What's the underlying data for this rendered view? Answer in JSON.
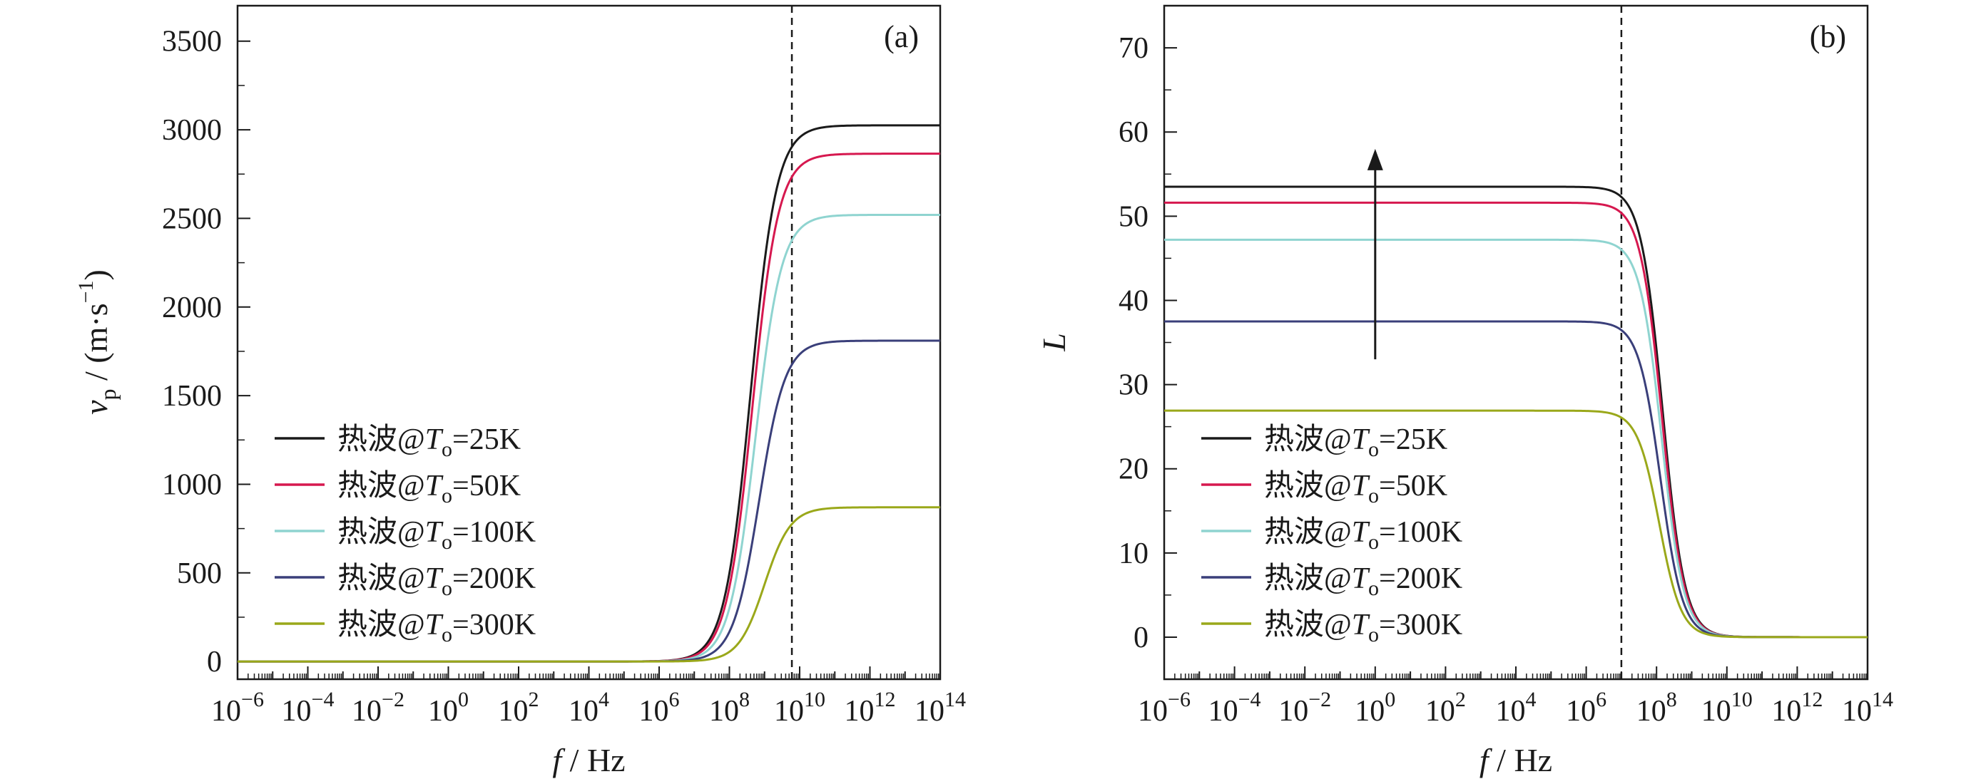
{
  "chart_data": [
    {
      "type": "line",
      "panel_label": "(a)",
      "xscale": "log",
      "xlabel": "f / Hz",
      "ylabel": "v_p / (m·s^-1)",
      "xlim": [
        1e-06,
        100000000000000.0
      ],
      "ylim": [
        -100,
        3700
      ],
      "x_tick_labels": [
        {
          "base": "10",
          "exp": "−6"
        },
        {
          "base": "10",
          "exp": "−4"
        },
        {
          "base": "10",
          "exp": "−2"
        },
        {
          "base": "10",
          "exp": "0"
        },
        {
          "base": "10",
          "exp": "2"
        },
        {
          "base": "10",
          "exp": "4"
        },
        {
          "base": "10",
          "exp": "6"
        },
        {
          "base": "10",
          "exp": "8"
        },
        {
          "base": "10",
          "exp": "10"
        },
        {
          "base": "10",
          "exp": "12"
        },
        {
          "base": "10",
          "exp": "14"
        }
      ],
      "y_ticks": [
        0,
        500,
        1000,
        1500,
        2000,
        2500,
        3000,
        3500
      ],
      "y_tick_labels": [
        "0",
        "500",
        "1000",
        "1500",
        "2000",
        "2500",
        "3000",
        "3500"
      ],
      "vline_x": 6000000000.0,
      "series": [
        {
          "name": "热波@T_o=25K",
          "color": "#1a1a1a",
          "low": 0,
          "high": 3025,
          "x_mid": 400000000.0
        },
        {
          "name": "热波@T_o=50K",
          "color": "#d6184f",
          "low": 0,
          "high": 2865,
          "x_mid": 450000000.0
        },
        {
          "name": "热波@T_o=100K",
          "color": "#8fd4d0",
          "low": 0,
          "high": 2520,
          "x_mid": 550000000.0
        },
        {
          "name": "热波@T_o=200K",
          "color": "#3a3f7a",
          "low": 0,
          "high": 1810,
          "x_mid": 700000000.0
        },
        {
          "name": "热波@T_o=300K",
          "color": "#9aa81a",
          "low": 0,
          "high": 870,
          "x_mid": 1000000000.0
        }
      ],
      "arrow": false,
      "legend_position": "lower-left",
      "legend": [
        {
          "prefix": "热波@",
          "var": "T",
          "sub": "o",
          "rest": "=25K"
        },
        {
          "prefix": "热波@",
          "var": "T",
          "sub": "o",
          "rest": "=50K"
        },
        {
          "prefix": "热波@",
          "var": "T",
          "sub": "o",
          "rest": "=100K"
        },
        {
          "prefix": "热波@",
          "var": "T",
          "sub": "o",
          "rest": "=200K"
        },
        {
          "prefix": "热波@",
          "var": "T",
          "sub": "o",
          "rest": "=300K"
        }
      ]
    },
    {
      "type": "line",
      "panel_label": "(b)",
      "xscale": "log",
      "xlabel": "f / Hz",
      "ylabel": "L",
      "xlim": [
        1e-06,
        100000000000000.0
      ],
      "ylim": [
        -5,
        75
      ],
      "x_tick_labels": [
        {
          "base": "10",
          "exp": "−6"
        },
        {
          "base": "10",
          "exp": "−4"
        },
        {
          "base": "10",
          "exp": "−2"
        },
        {
          "base": "10",
          "exp": "0"
        },
        {
          "base": "10",
          "exp": "2"
        },
        {
          "base": "10",
          "exp": "4"
        },
        {
          "base": "10",
          "exp": "6"
        },
        {
          "base": "10",
          "exp": "8"
        },
        {
          "base": "10",
          "exp": "10"
        },
        {
          "base": "10",
          "exp": "12"
        },
        {
          "base": "10",
          "exp": "14"
        }
      ],
      "y_ticks": [
        0,
        10,
        20,
        30,
        40,
        50,
        60,
        70
      ],
      "y_tick_labels": [
        "0",
        "10",
        "20",
        "30",
        "40",
        "50",
        "60",
        "70"
      ],
      "vline_x": 10000000.0,
      "series": [
        {
          "name": "热波@T_o=25K",
          "color": "#1a1a1a",
          "low": 0,
          "high": 53.5,
          "x_mid": 150000000.0
        },
        {
          "name": "热波@T_o=50K",
          "color": "#d6184f",
          "low": 0,
          "high": 51.6,
          "x_mid": 145000000.0
        },
        {
          "name": "热波@T_o=100K",
          "color": "#8fd4d0",
          "low": 0,
          "high": 47.2,
          "x_mid": 140000000.0
        },
        {
          "name": "热波@T_o=200K",
          "color": "#3a3f7a",
          "low": 0,
          "high": 37.5,
          "x_mid": 130000000.0
        },
        {
          "name": "热波@T_o=300K",
          "color": "#9aa81a",
          "low": 0,
          "high": 26.9,
          "x_mid": 120000000.0
        }
      ],
      "arrow": true,
      "arrow_x": 1.0,
      "arrow_y": [
        33,
        58
      ],
      "legend_position": "lower-left",
      "legend": [
        {
          "prefix": "热波@",
          "var": "T",
          "sub": "o",
          "rest": "=25K"
        },
        {
          "prefix": "热波@",
          "var": "T",
          "sub": "o",
          "rest": "=50K"
        },
        {
          "prefix": "热波@",
          "var": "T",
          "sub": "o",
          "rest": "=100K"
        },
        {
          "prefix": "热波@",
          "var": "T",
          "sub": "o",
          "rest": "=200K"
        },
        {
          "prefix": "热波@",
          "var": "T",
          "sub": "o",
          "rest": "=300K"
        }
      ]
    }
  ]
}
